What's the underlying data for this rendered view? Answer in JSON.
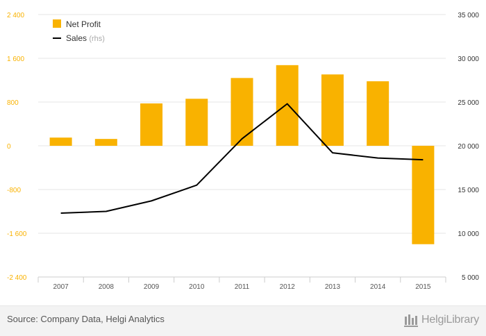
{
  "chart_data": {
    "type": "bar",
    "categories": [
      "2007",
      "2008",
      "2009",
      "2010",
      "2011",
      "2012",
      "2013",
      "2014",
      "2015"
    ],
    "series": [
      {
        "name": "Net Profit",
        "kind": "bar",
        "axis": "left",
        "color": "#f9b200",
        "values": [
          150,
          125,
          775,
          860,
          1240,
          1475,
          1305,
          1180,
          -1800
        ]
      },
      {
        "name": "Sales",
        "name_suffix": "(rhs)",
        "kind": "line",
        "axis": "right",
        "color": "#000000",
        "values": [
          12300,
          12500,
          13700,
          15500,
          20800,
          24800,
          19200,
          18600,
          18400
        ]
      }
    ],
    "y_left": {
      "min": -2400,
      "max": 2400,
      "ticks": [
        -2400,
        -1600,
        -800,
        0,
        800,
        1600,
        2400
      ],
      "tick_labels": [
        "-2 400",
        "-1 600",
        "-800",
        "0",
        "800",
        "1 600",
        "2 400"
      ],
      "color": "#f9b200"
    },
    "y_right": {
      "min": 5000,
      "max": 35000,
      "ticks": [
        5000,
        10000,
        15000,
        20000,
        25000,
        30000,
        35000
      ],
      "tick_labels": [
        "5 000",
        "10 000",
        "15 000",
        "20 000",
        "25 000",
        "30 000",
        "35 000"
      ],
      "color": "#333333"
    },
    "grid": true,
    "legend_position": "top-left"
  },
  "footer": {
    "source": "Source: Company Data, Helgi Analytics",
    "logo": "HelgiLibrary",
    "logo_icon": "helgi-library-icon"
  }
}
